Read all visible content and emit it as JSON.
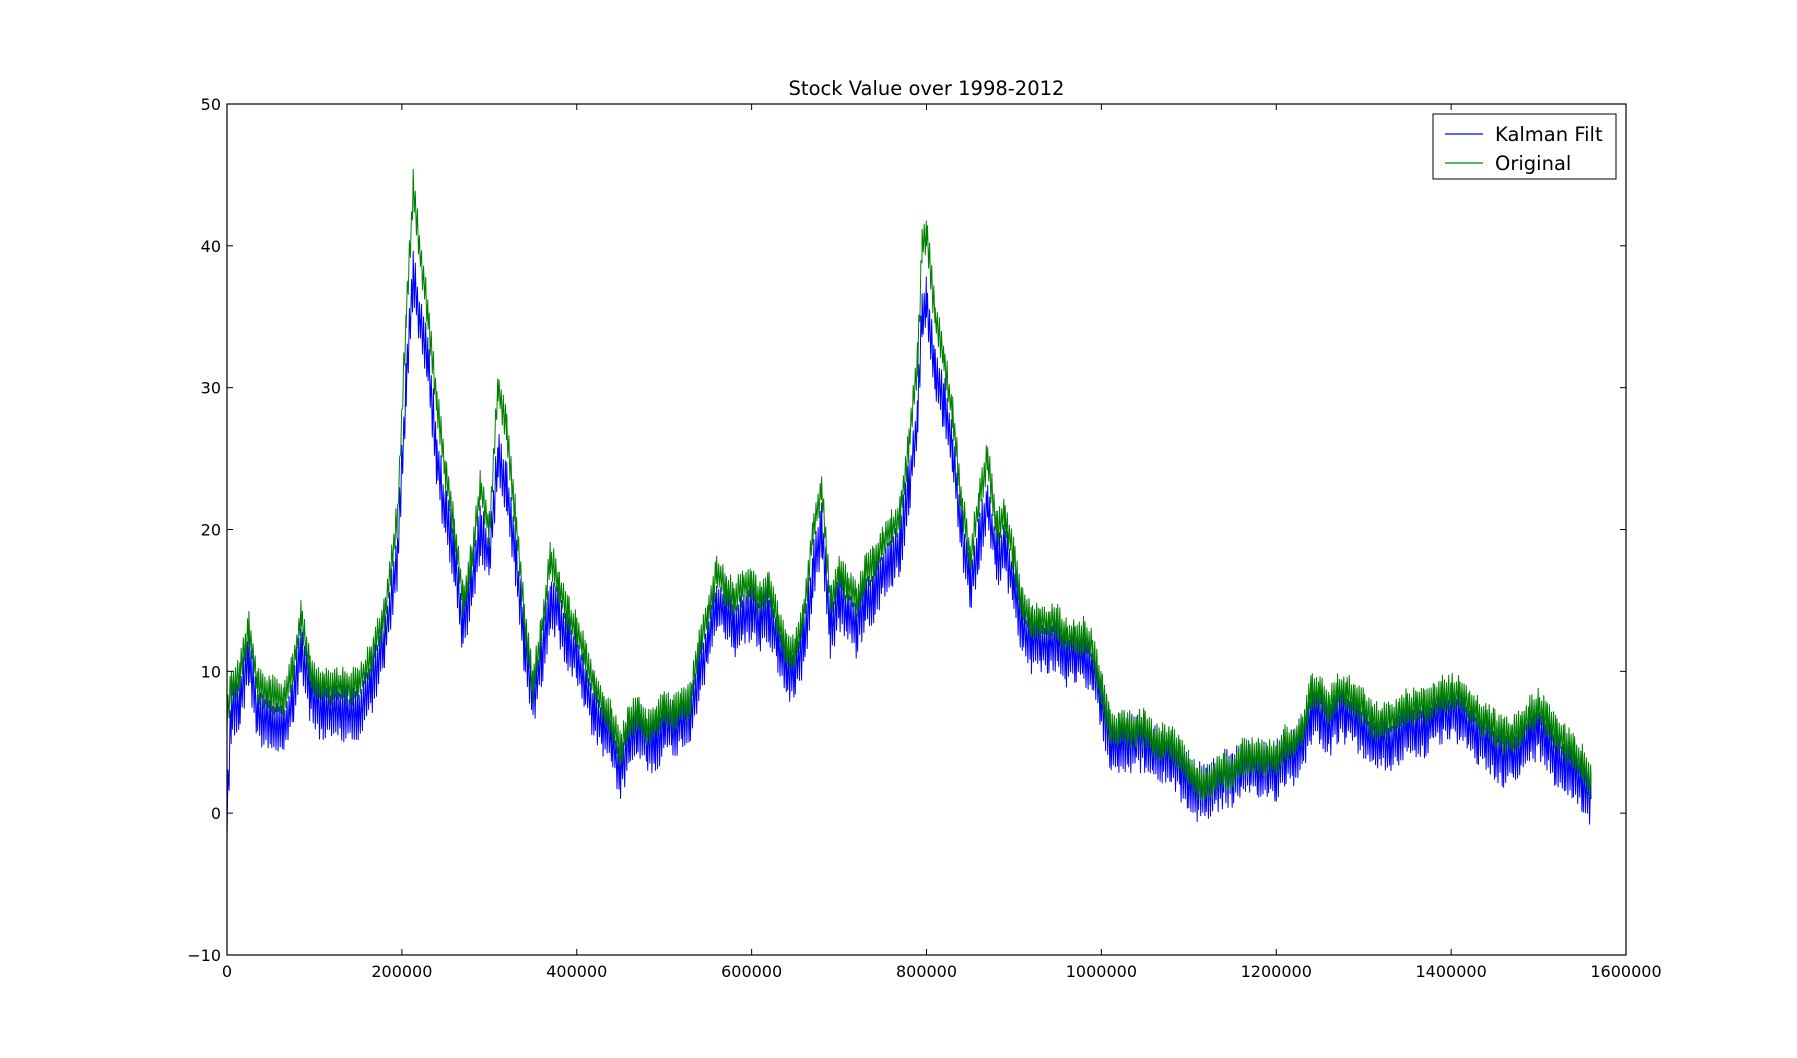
{
  "chart_data": {
    "type": "line",
    "title": "Stock Value over 1998-2012",
    "xlabel": "",
    "ylabel": "",
    "xlim": [
      0,
      1600000
    ],
    "ylim": [
      -10,
      50
    ],
    "x_ticks": [
      0,
      200000,
      400000,
      600000,
      800000,
      1000000,
      1200000,
      1400000,
      1600000
    ],
    "x_tick_labels": [
      "0",
      "200000",
      "400000",
      "600000",
      "800000",
      "1000000",
      "1200000",
      "1400000",
      "1600000"
    ],
    "y_ticks": [
      -10,
      0,
      10,
      20,
      30,
      40,
      50
    ],
    "y_tick_labels": [
      "−10",
      "0",
      "10",
      "20",
      "30",
      "40",
      "50"
    ],
    "grid": false,
    "legend_position": "top-right",
    "series": [
      {
        "name": "Kalman Filt",
        "color": "#0000ff",
        "band": 2.2,
        "points": [
          [
            0,
            0
          ],
          [
            5000,
            7
          ],
          [
            15000,
            8
          ],
          [
            25000,
            11
          ],
          [
            35000,
            7
          ],
          [
            50000,
            6.5
          ],
          [
            65000,
            6
          ],
          [
            75000,
            8
          ],
          [
            85000,
            11.5
          ],
          [
            95000,
            8.5
          ],
          [
            110000,
            7
          ],
          [
            130000,
            7
          ],
          [
            150000,
            7
          ],
          [
            165000,
            9
          ],
          [
            180000,
            12
          ],
          [
            195000,
            18
          ],
          [
            205000,
            30
          ],
          [
            213000,
            38
          ],
          [
            220000,
            35
          ],
          [
            230000,
            32
          ],
          [
            240000,
            25
          ],
          [
            250000,
            21
          ],
          [
            260000,
            18
          ],
          [
            270000,
            13
          ],
          [
            280000,
            16
          ],
          [
            290000,
            20
          ],
          [
            300000,
            18
          ],
          [
            310000,
            25
          ],
          [
            320000,
            23
          ],
          [
            330000,
            18
          ],
          [
            340000,
            12
          ],
          [
            350000,
            8
          ],
          [
            360000,
            11
          ],
          [
            370000,
            15
          ],
          [
            380000,
            14
          ],
          [
            390000,
            12
          ],
          [
            400000,
            11
          ],
          [
            410000,
            9
          ],
          [
            420000,
            7
          ],
          [
            430000,
            6
          ],
          [
            440000,
            5
          ],
          [
            450000,
            3
          ],
          [
            460000,
            5
          ],
          [
            470000,
            6
          ],
          [
            480000,
            5
          ],
          [
            490000,
            5
          ],
          [
            500000,
            6
          ],
          [
            510000,
            6
          ],
          [
            520000,
            6.5
          ],
          [
            530000,
            7
          ],
          [
            540000,
            10
          ],
          [
            550000,
            12
          ],
          [
            560000,
            15
          ],
          [
            570000,
            14
          ],
          [
            580000,
            13
          ],
          [
            590000,
            14
          ],
          [
            600000,
            14
          ],
          [
            610000,
            13.5
          ],
          [
            620000,
            14
          ],
          [
            630000,
            12
          ],
          [
            640000,
            10
          ],
          [
            650000,
            10
          ],
          [
            660000,
            12
          ],
          [
            670000,
            17
          ],
          [
            680000,
            20
          ],
          [
            690000,
            13
          ],
          [
            700000,
            15
          ],
          [
            710000,
            14
          ],
          [
            720000,
            13
          ],
          [
            730000,
            15
          ],
          [
            740000,
            15.5
          ],
          [
            750000,
            17
          ],
          [
            760000,
            18
          ],
          [
            770000,
            19
          ],
          [
            780000,
            23
          ],
          [
            790000,
            28
          ],
          [
            795000,
            35
          ],
          [
            800000,
            36
          ],
          [
            810000,
            31
          ],
          [
            820000,
            29
          ],
          [
            830000,
            25
          ],
          [
            840000,
            20
          ],
          [
            850000,
            16
          ],
          [
            860000,
            19
          ],
          [
            870000,
            22
          ],
          [
            880000,
            18
          ],
          [
            890000,
            18.5
          ],
          [
            900000,
            16
          ],
          [
            910000,
            13
          ],
          [
            920000,
            12
          ],
          [
            930000,
            12
          ],
          [
            940000,
            12
          ],
          [
            950000,
            12
          ],
          [
            960000,
            11
          ],
          [
            970000,
            11
          ],
          [
            980000,
            11
          ],
          [
            990000,
            10
          ],
          [
            1000000,
            8
          ],
          [
            1010000,
            5
          ],
          [
            1020000,
            5
          ],
          [
            1030000,
            5
          ],
          [
            1040000,
            5
          ],
          [
            1050000,
            5
          ],
          [
            1060000,
            4
          ],
          [
            1070000,
            4
          ],
          [
            1080000,
            4
          ],
          [
            1090000,
            3
          ],
          [
            1100000,
            2
          ],
          [
            1110000,
            1.5
          ],
          [
            1120000,
            1.5
          ],
          [
            1130000,
            2
          ],
          [
            1140000,
            2.5
          ],
          [
            1150000,
            2.5
          ],
          [
            1160000,
            3
          ],
          [
            1170000,
            3
          ],
          [
            1180000,
            3
          ],
          [
            1190000,
            3
          ],
          [
            1200000,
            3
          ],
          [
            1210000,
            4
          ],
          [
            1220000,
            4
          ],
          [
            1230000,
            5
          ],
          [
            1240000,
            7
          ],
          [
            1250000,
            7
          ],
          [
            1260000,
            6
          ],
          [
            1270000,
            7
          ],
          [
            1280000,
            7
          ],
          [
            1290000,
            6.5
          ],
          [
            1300000,
            6
          ],
          [
            1310000,
            5
          ],
          [
            1320000,
            5
          ],
          [
            1330000,
            5
          ],
          [
            1340000,
            5.5
          ],
          [
            1350000,
            6
          ],
          [
            1360000,
            6
          ],
          [
            1370000,
            6
          ],
          [
            1380000,
            6.5
          ],
          [
            1390000,
            7
          ],
          [
            1400000,
            7
          ],
          [
            1410000,
            7
          ],
          [
            1420000,
            6
          ],
          [
            1430000,
            5.5
          ],
          [
            1440000,
            5
          ],
          [
            1450000,
            4.5
          ],
          [
            1460000,
            4
          ],
          [
            1470000,
            4
          ],
          [
            1480000,
            4.5
          ],
          [
            1490000,
            5.5
          ],
          [
            1500000,
            6
          ],
          [
            1510000,
            5
          ],
          [
            1520000,
            4
          ],
          [
            1530000,
            3.5
          ],
          [
            1540000,
            3
          ],
          [
            1550000,
            2
          ],
          [
            1560000,
            1
          ]
        ]
      },
      {
        "name": "Original",
        "color": "#008000",
        "band": 1.4,
        "points": [
          [
            0,
            7
          ],
          [
            5000,
            9
          ],
          [
            15000,
            10
          ],
          [
            25000,
            13
          ],
          [
            35000,
            9
          ],
          [
            50000,
            8.5
          ],
          [
            65000,
            8
          ],
          [
            75000,
            10
          ],
          [
            85000,
            14
          ],
          [
            95000,
            10
          ],
          [
            110000,
            9
          ],
          [
            130000,
            9
          ],
          [
            150000,
            9
          ],
          [
            165000,
            11
          ],
          [
            180000,
            14
          ],
          [
            195000,
            21
          ],
          [
            205000,
            35
          ],
          [
            213000,
            44
          ],
          [
            220000,
            40
          ],
          [
            230000,
            35
          ],
          [
            240000,
            29
          ],
          [
            250000,
            24
          ],
          [
            260000,
            20
          ],
          [
            270000,
            15
          ],
          [
            280000,
            18
          ],
          [
            290000,
            23
          ],
          [
            300000,
            20
          ],
          [
            310000,
            30
          ],
          [
            320000,
            27
          ],
          [
            330000,
            21
          ],
          [
            340000,
            14
          ],
          [
            350000,
            9
          ],
          [
            360000,
            13
          ],
          [
            370000,
            18
          ],
          [
            380000,
            16
          ],
          [
            390000,
            14
          ],
          [
            400000,
            13
          ],
          [
            410000,
            11
          ],
          [
            420000,
            9
          ],
          [
            430000,
            7.5
          ],
          [
            440000,
            6.5
          ],
          [
            450000,
            4.5
          ],
          [
            460000,
            6.5
          ],
          [
            470000,
            7
          ],
          [
            480000,
            6
          ],
          [
            490000,
            6.5
          ],
          [
            500000,
            7.5
          ],
          [
            510000,
            7
          ],
          [
            520000,
            7.5
          ],
          [
            530000,
            8
          ],
          [
            540000,
            12
          ],
          [
            550000,
            14
          ],
          [
            560000,
            17
          ],
          [
            570000,
            16
          ],
          [
            580000,
            15
          ],
          [
            590000,
            16
          ],
          [
            600000,
            16
          ],
          [
            610000,
            15
          ],
          [
            620000,
            16
          ],
          [
            630000,
            13.5
          ],
          [
            640000,
            11.5
          ],
          [
            650000,
            11.5
          ],
          [
            660000,
            14
          ],
          [
            670000,
            20
          ],
          [
            680000,
            23
          ],
          [
            690000,
            15
          ],
          [
            700000,
            17
          ],
          [
            710000,
            16
          ],
          [
            720000,
            15
          ],
          [
            730000,
            17
          ],
          [
            740000,
            17.5
          ],
          [
            750000,
            19
          ],
          [
            760000,
            20
          ],
          [
            770000,
            21
          ],
          [
            780000,
            26
          ],
          [
            790000,
            32
          ],
          [
            795000,
            40
          ],
          [
            800000,
            41
          ],
          [
            810000,
            35
          ],
          [
            820000,
            32
          ],
          [
            830000,
            28
          ],
          [
            840000,
            22
          ],
          [
            850000,
            18
          ],
          [
            860000,
            22
          ],
          [
            870000,
            25
          ],
          [
            880000,
            20
          ],
          [
            890000,
            21
          ],
          [
            900000,
            18
          ],
          [
            910000,
            14.5
          ],
          [
            920000,
            13.5
          ],
          [
            930000,
            13.5
          ],
          [
            940000,
            13.5
          ],
          [
            950000,
            13.5
          ],
          [
            960000,
            12.5
          ],
          [
            970000,
            12.5
          ],
          [
            980000,
            12.5
          ],
          [
            990000,
            11.5
          ],
          [
            1000000,
            9
          ],
          [
            1010000,
            6
          ],
          [
            1020000,
            6
          ],
          [
            1030000,
            6
          ],
          [
            1040000,
            6
          ],
          [
            1050000,
            6
          ],
          [
            1060000,
            5
          ],
          [
            1070000,
            5
          ],
          [
            1080000,
            5
          ],
          [
            1090000,
            4
          ],
          [
            1100000,
            3
          ],
          [
            1110000,
            2
          ],
          [
            1120000,
            2
          ],
          [
            1130000,
            2.5
          ],
          [
            1140000,
            3
          ],
          [
            1150000,
            3
          ],
          [
            1160000,
            4
          ],
          [
            1170000,
            4
          ],
          [
            1180000,
            4
          ],
          [
            1190000,
            4
          ],
          [
            1200000,
            4
          ],
          [
            1210000,
            5
          ],
          [
            1220000,
            5
          ],
          [
            1230000,
            6
          ],
          [
            1240000,
            8.5
          ],
          [
            1250000,
            8.5
          ],
          [
            1260000,
            7.5
          ],
          [
            1270000,
            8.5
          ],
          [
            1280000,
            8.5
          ],
          [
            1290000,
            8
          ],
          [
            1300000,
            7.5
          ],
          [
            1310000,
            6.5
          ],
          [
            1320000,
            6.5
          ],
          [
            1330000,
            6.5
          ],
          [
            1340000,
            7
          ],
          [
            1350000,
            7.5
          ],
          [
            1360000,
            7.5
          ],
          [
            1370000,
            7.5
          ],
          [
            1380000,
            8
          ],
          [
            1390000,
            8.5
          ],
          [
            1400000,
            8.5
          ],
          [
            1410000,
            8.5
          ],
          [
            1420000,
            7.5
          ],
          [
            1430000,
            7
          ],
          [
            1440000,
            6.5
          ],
          [
            1450000,
            6
          ],
          [
            1460000,
            5.5
          ],
          [
            1470000,
            5.5
          ],
          [
            1480000,
            6
          ],
          [
            1490000,
            7
          ],
          [
            1500000,
            7.5
          ],
          [
            1510000,
            6.5
          ],
          [
            1520000,
            5.5
          ],
          [
            1530000,
            5
          ],
          [
            1540000,
            4.5
          ],
          [
            1550000,
            3.5
          ],
          [
            1560000,
            2
          ]
        ]
      }
    ]
  }
}
